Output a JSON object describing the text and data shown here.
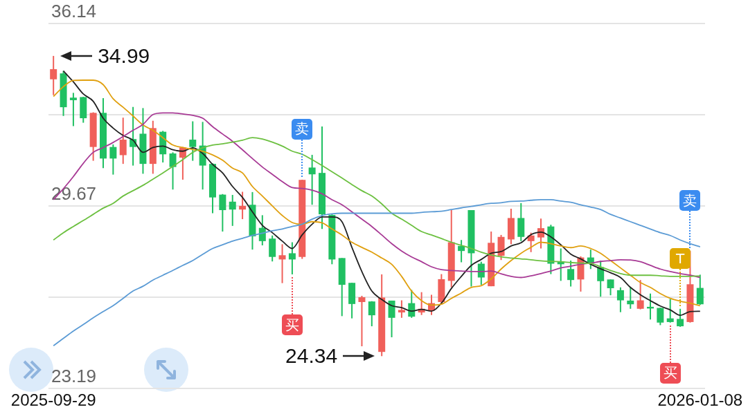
{
  "chart_data": {
    "type": "candlestick",
    "grid": "y",
    "legend": false,
    "categories": [
      "2025-09-29",
      null,
      null,
      null,
      null,
      null,
      null,
      null,
      null,
      null,
      null,
      null,
      null,
      null,
      null,
      null,
      null,
      null,
      null,
      null,
      null,
      null,
      null,
      null,
      null,
      null,
      null,
      null,
      null,
      null,
      null,
      null,
      null,
      null,
      null,
      null,
      null,
      null,
      null,
      null,
      null,
      null,
      null,
      null,
      null,
      null,
      null,
      null,
      null,
      null,
      null,
      null,
      null,
      null,
      null,
      null,
      null,
      null,
      null,
      null,
      null,
      null,
      null,
      null,
      null,
      "2026-01-08"
    ],
    "ylim": [
      23.19,
      36.14
    ],
    "yticks": [
      23.19,
      {
        "value": 26.43,
        "label": null
      },
      29.67,
      {
        "value": 32.905,
        "label": null
      },
      36.14
    ],
    "ohlc": [
      [
        34.16,
        34.99,
        33.6,
        34.52
      ],
      [
        34.37,
        34.46,
        32.86,
        33.17
      ],
      [
        33.51,
        33.68,
        32.5,
        33.42
      ],
      [
        33.53,
        33.54,
        32.62,
        32.78
      ],
      [
        31.76,
        32.99,
        31.27,
        32.97
      ],
      [
        32.97,
        33.49,
        31.01,
        31.35
      ],
      [
        31.76,
        31.85,
        30.78,
        31.35
      ],
      [
        31.47,
        32.8,
        31.16,
        32.02
      ],
      [
        32.04,
        33.18,
        31.1,
        31.76
      ],
      [
        32.23,
        33.14,
        30.81,
        31.16
      ],
      [
        31.16,
        32.69,
        30.81,
        32.43
      ],
      [
        32.3,
        32.33,
        31.21,
        31.5
      ],
      [
        31.53,
        31.57,
        30.25,
        31.05
      ],
      [
        31.38,
        31.76,
        30.6,
        31.74
      ],
      [
        32.02,
        32.67,
        31.27,
        31.76
      ],
      [
        31.81,
        32.65,
        30.25,
        31.1
      ],
      [
        31.16,
        31.18,
        29.41,
        29.97
      ],
      [
        30.07,
        30.09,
        28.76,
        29.52
      ],
      [
        29.82,
        30.06,
        28.96,
        29.54
      ],
      [
        29.54,
        30.17,
        29.2,
        29.67
      ],
      [
        29.71,
        30.16,
        28.12,
        28.59
      ],
      [
        28.89,
        29.34,
        28.27,
        28.42
      ],
      [
        28.51,
        28.62,
        27.7,
        27.86
      ],
      [
        27.77,
        28.31,
        26.93,
        27.92
      ],
      [
        27.99,
        28.38,
        27.24,
        27.77
      ],
      [
        27.86,
        30.6,
        27.79,
        30.59
      ],
      [
        31.03,
        31.48,
        29.71,
        30.79
      ],
      [
        30.84,
        32.49,
        28.85,
        29.37
      ],
      [
        29.35,
        29.37,
        27.6,
        27.77
      ],
      [
        27.82,
        27.82,
        25.76,
        26.87
      ],
      [
        26.94,
        26.94,
        25.68,
        26.19
      ],
      [
        26.26,
        26.48,
        24.69,
        26.43
      ],
      [
        26.28,
        26.29,
        25.4,
        25.79
      ],
      [
        24.49,
        27.24,
        24.34,
        26.42
      ],
      [
        26.31,
        26.31,
        25.01,
        25.7
      ],
      [
        25.89,
        26.32,
        25.7,
        25.98
      ],
      [
        26.22,
        26.69,
        25.7,
        25.74
      ],
      [
        25.89,
        26.61,
        25.8,
        26.02
      ],
      [
        25.96,
        26.52,
        25.8,
        26.22
      ],
      [
        26.26,
        27.25,
        26.18,
        27.07
      ],
      [
        27.01,
        29.52,
        26.78,
        28.38
      ],
      [
        28.25,
        28.46,
        27.67,
        28.07
      ],
      [
        29.52,
        29.52,
        26.81,
        27.99
      ],
      [
        27.62,
        27.69,
        26.87,
        27.13
      ],
      [
        26.82,
        28.76,
        26.82,
        28.36
      ],
      [
        27.9,
        28.64,
        27.75,
        28.57
      ],
      [
        28.48,
        29.57,
        28.31,
        29.24
      ],
      [
        29.24,
        29.77,
        28.42,
        28.57
      ],
      [
        28.42,
        28.72,
        28.03,
        28.62
      ],
      [
        28.55,
        29.22,
        28.16,
        28.88
      ],
      [
        28.94,
        29.0,
        27.25,
        27.62
      ],
      [
        27.7,
        28.16,
        27.01,
        27.6
      ],
      [
        27.43,
        27.73,
        26.81,
        27.04
      ],
      [
        27.06,
        27.88,
        26.63,
        27.84
      ],
      [
        27.84,
        28.12,
        27.43,
        27.64
      ],
      [
        27.5,
        27.73,
        26.45,
        27.0
      ],
      [
        27.06,
        27.06,
        26.5,
        26.75
      ],
      [
        26.68,
        26.78,
        25.9,
        26.32
      ],
      [
        26.31,
        26.78,
        26.02,
        26.18
      ],
      [
        26.02,
        27.04,
        26.0,
        26.32
      ],
      [
        26.09,
        26.56,
        25.64,
        26.03
      ],
      [
        26.05,
        26.06,
        25.44,
        25.53
      ],
      [
        25.68,
        26.37,
        25.53,
        25.55
      ],
      [
        25.66,
        26.02,
        25.38,
        25.4
      ],
      [
        25.55,
        28.07,
        25.53,
        26.89
      ],
      [
        26.76,
        27.23,
        26.16,
        26.18
      ]
    ],
    "colors": [
      "#f0605a",
      "#20c062",
      "#20c062",
      "#20c062",
      "#f0605a",
      "#20c062",
      "#20c062",
      "#f0605a",
      "#20c062",
      "#20c062",
      "#f0605a",
      "#20c062",
      "#20c062",
      "#f0605a",
      "#20c062",
      "#20c062",
      "#20c062",
      "#20c062",
      "#20c062",
      "#f0605a",
      "#20c062",
      "#20c062",
      "#20c062",
      "#f0605a",
      "#20c062",
      "#f0605a",
      "#20c062",
      "#20c062",
      "#20c062",
      "#20c062",
      "#20c062",
      "#f0605a",
      "#20c062",
      "#f0605a",
      "#20c062",
      "#f0605a",
      "#20c062",
      "#f0605a",
      "#f0605a",
      "#f0605a",
      "#f0605a",
      "#20c062",
      "#20c062",
      "#20c062",
      "#f0605a",
      "#f0605a",
      "#f0605a",
      "#20c062",
      "#f0605a",
      "#f0605a",
      "#20c062",
      "#20c062",
      "#20c062",
      "#f0605a",
      "#20c062",
      "#20c062",
      "#20c062",
      "#20c062",
      "#20c062",
      "#f0605a",
      "#20c062",
      "#20c062",
      "#20c062",
      "#20c062",
      "#f0605a",
      "#20c062"
    ],
    "series": [
      {
        "type": "line",
        "color": "#222222",
        "values": [
          null,
          34.46,
          34.07,
          33.64,
          33.38,
          32.78,
          32.43,
          32.17,
          32.0,
          31.57,
          31.74,
          31.79,
          31.66,
          31.61,
          31.73,
          31.53,
          31.14,
          30.84,
          30.36,
          29.97,
          29.46,
          28.98,
          28.72,
          28.42,
          28.16,
          28.64,
          29.02,
          29.28,
          29.28,
          29.11,
          28.2,
          27.34,
          26.65,
          26.35,
          26.13,
          26.06,
          25.94,
          26.0,
          25.94,
          26.22,
          26.74,
          27.17,
          27.56,
          27.77,
          27.99,
          28.05,
          28.25,
          28.36,
          28.65,
          28.74,
          28.57,
          28.29,
          27.96,
          27.79,
          27.6,
          27.44,
          27.3,
          27.13,
          26.78,
          26.52,
          26.31,
          26.12,
          25.98,
          25.79,
          25.92,
          25.93
        ]
      },
      {
        "type": "line",
        "color": "#e0a010",
        "values": [
          33.55,
          33.9,
          34.12,
          34.13,
          34.13,
          33.97,
          33.47,
          33.17,
          32.86,
          32.54,
          32.35,
          32.09,
          31.83,
          31.74,
          31.67,
          31.61,
          31.48,
          31.29,
          31.01,
          30.84,
          30.36,
          30.02,
          29.67,
          29.33,
          29.08,
          29.02,
          29.11,
          29.07,
          28.85,
          28.64,
          28.38,
          28.2,
          28.03,
          27.82,
          27.6,
          27.17,
          26.65,
          26.31,
          26.15,
          26.18,
          26.39,
          26.58,
          26.78,
          26.84,
          27.08,
          27.43,
          27.73,
          27.99,
          28.2,
          28.38,
          28.33,
          28.25,
          28.19,
          28.25,
          28.16,
          27.99,
          27.73,
          27.47,
          27.21,
          26.95,
          26.78,
          26.56,
          26.39,
          26.29,
          26.22,
          26.13
        ]
      },
      {
        "type": "line",
        "color": "#a83a95",
        "values": [
          29.89,
          30.28,
          30.71,
          31.18,
          31.57,
          31.74,
          31.92,
          32.13,
          32.35,
          32.56,
          32.91,
          32.97,
          32.97,
          32.93,
          32.88,
          32.78,
          32.48,
          32.22,
          31.96,
          31.66,
          31.35,
          31.05,
          30.79,
          30.53,
          30.32,
          30.29,
          30.23,
          30.1,
          29.89,
          29.71,
          29.46,
          29.2,
          28.94,
          28.64,
          28.33,
          28.07,
          27.86,
          27.69,
          27.51,
          27.41,
          27.38,
          27.36,
          27.34,
          27.34,
          27.36,
          27.26,
          27.17,
          27.13,
          27.19,
          27.27,
          27.36,
          27.47,
          27.53,
          27.6,
          27.64,
          27.7,
          27.73,
          27.76,
          27.75,
          27.69,
          27.56,
          27.43,
          27.34,
          27.27,
          27.21,
          27.13
        ]
      },
      {
        "type": "line",
        "color": "#6cc040",
        "values": [
          28.46,
          28.72,
          28.94,
          29.15,
          29.37,
          29.59,
          29.76,
          30.02,
          30.21,
          30.4,
          30.62,
          30.84,
          31.07,
          31.31,
          31.57,
          31.73,
          31.83,
          31.87,
          31.93,
          32.0,
          32.09,
          32.04,
          31.93,
          31.79,
          31.61,
          31.5,
          31.31,
          31.1,
          30.88,
          30.66,
          30.43,
          30.21,
          30.02,
          29.74,
          29.41,
          29.2,
          28.98,
          28.76,
          28.64,
          28.51,
          28.38,
          28.27,
          28.16,
          28.03,
          27.93,
          27.86,
          27.82,
          27.79,
          27.76,
          27.72,
          27.7,
          27.69,
          27.66,
          27.64,
          27.63,
          27.51,
          27.38,
          27.27,
          27.21,
          27.21,
          27.21,
          27.19,
          27.17,
          27.17,
          27.17,
          27.19
        ]
      },
      {
        "type": "line",
        "color": "#5b9bd5",
        "values": [
          24.71,
          24.97,
          25.23,
          25.46,
          25.7,
          25.92,
          26.13,
          26.39,
          26.65,
          26.82,
          27.04,
          27.21,
          27.38,
          27.56,
          27.73,
          27.95,
          28.16,
          28.29,
          28.42,
          28.52,
          28.62,
          28.7,
          28.79,
          28.85,
          28.94,
          29.02,
          29.2,
          29.33,
          29.39,
          29.41,
          29.41,
          29.41,
          29.41,
          29.41,
          29.41,
          29.41,
          29.41,
          29.44,
          29.46,
          29.48,
          29.54,
          29.6,
          29.65,
          29.71,
          29.76,
          29.78,
          29.83,
          29.84,
          29.87,
          29.89,
          29.89,
          29.84,
          29.8,
          29.71,
          29.63,
          29.54,
          29.37,
          29.24,
          29.11,
          28.98,
          28.85,
          28.72,
          28.62,
          28.46,
          28.33,
          28.22
        ]
      }
    ],
    "annotations": [
      "34.99",
      "24.34",
      {
        "text": "卖",
        "y": 30.6
      },
      {
        "text": "买",
        "y": 27.24
      },
      {
        "text": "买",
        "y": 25.53
      },
      {
        "text": "T",
        "y": 26.02
      },
      {
        "text": "卖",
        "y": 28.07
      }
    ]
  }
}
